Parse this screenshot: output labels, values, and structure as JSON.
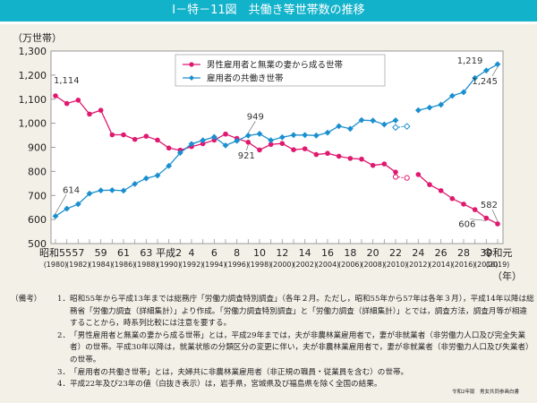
{
  "title": "Ⅰ－特－11図　共働き等世帯数の推移",
  "chart_data": {
    "type": "line",
    "title": "Ⅰ－特－11図　共働き等世帯数の推移",
    "ylabel": "（万世帯）",
    "xlabel": "（年）",
    "ylim": [
      500,
      1300
    ],
    "yticks": [
      500,
      600,
      700,
      800,
      900,
      1000,
      1100,
      1200,
      1300
    ],
    "ytick_labels": [
      "500",
      "600",
      "700",
      "800",
      "900",
      "1,000",
      "1,100",
      "1,200",
      "1,300"
    ],
    "grid": false,
    "legend_position": "top-center",
    "x": [
      1980,
      1981,
      1982,
      1983,
      1984,
      1985,
      1986,
      1987,
      1988,
      1989,
      1990,
      1991,
      1992,
      1993,
      1994,
      1995,
      1996,
      1997,
      1998,
      1999,
      2000,
      2001,
      2002,
      2003,
      2004,
      2005,
      2006,
      2007,
      2008,
      2009,
      2010,
      2011,
      2012,
      2013,
      2014,
      2015,
      2016,
      2017,
      2018,
      2019
    ],
    "xtick_labels": [
      {
        "year": 1980,
        "era": "昭和55",
        "western": "(1980)"
      },
      {
        "year": 1982,
        "era": "57",
        "western": "(1982)"
      },
      {
        "year": 1984,
        "era": "59",
        "western": "(1984)"
      },
      {
        "year": 1986,
        "era": "61",
        "western": "(1986)"
      },
      {
        "year": 1988,
        "era": "63",
        "western": "(1988)"
      },
      {
        "year": 1990,
        "era": "平成2",
        "western": "(1990)"
      },
      {
        "year": 1992,
        "era": "4",
        "western": "(1992)"
      },
      {
        "year": 1994,
        "era": "6",
        "western": "(1994)"
      },
      {
        "year": 1996,
        "era": "8",
        "western": "(1996)"
      },
      {
        "year": 1998,
        "era": "10",
        "western": "(1998)"
      },
      {
        "year": 2000,
        "era": "12",
        "western": "(2000)"
      },
      {
        "year": 2002,
        "era": "14",
        "western": "(2002)"
      },
      {
        "year": 2004,
        "era": "16",
        "western": "(2004)"
      },
      {
        "year": 2006,
        "era": "18",
        "western": "(2006)"
      },
      {
        "year": 2008,
        "era": "20",
        "western": "(2008)"
      },
      {
        "year": 2010,
        "era": "22",
        "western": "(2010)"
      },
      {
        "year": 2012,
        "era": "24",
        "western": "(2012)"
      },
      {
        "year": 2014,
        "era": "26",
        "western": "(2014)"
      },
      {
        "year": 2016,
        "era": "28",
        "western": "(2016)"
      },
      {
        "year": 2018,
        "era": "30",
        "western": "(2018)"
      },
      {
        "year": 2019,
        "era": "令和元",
        "western": "(2019)"
      }
    ],
    "series": [
      {
        "name": "男性雇用者と無業の妻から成る世帯",
        "color": "#e0186f",
        "marker": "circle",
        "values": [
          1114,
          1082,
          1096,
          1038,
          1054,
          952,
          952,
          933,
          946,
          930,
          897,
          888,
          903,
          915,
          930,
          955,
          937,
          921,
          889,
          912,
          916,
          890,
          894,
          870,
          875,
          863,
          854,
          851,
          825,
          831,
          797,
          null,
          787,
          745,
          720,
          687,
          664,
          641,
          606,
          582
        ],
        "excluded_region_values": {
          "2010": 777,
          "2011": 773
        }
      },
      {
        "name": "雇用者の共働き世帯",
        "color": "#1a8fcf",
        "marker": "diamond",
        "values": [
          614,
          645,
          664,
          708,
          721,
          722,
          720,
          748,
          771,
          783,
          823,
          877,
          914,
          929,
          943,
          908,
          927,
          949,
          956,
          929,
          942,
          951,
          951,
          949,
          961,
          988,
          977,
          1013,
          1011,
          995,
          1012,
          null,
          1054,
          1065,
          1077,
          1114,
          1129,
          1188,
          1219,
          1245
        ],
        "excluded_region_values": {
          "2010": 983,
          "2011": 987
        }
      }
    ],
    "annotations": [
      {
        "series": 0,
        "year": 1980,
        "text": "1,114"
      },
      {
        "series": 1,
        "year": 1980,
        "text": "614"
      },
      {
        "series": 1,
        "year": 1997,
        "text": "949"
      },
      {
        "series": 0,
        "year": 1997,
        "text": "921"
      },
      {
        "series": 1,
        "year": 2018,
        "text": "1,219"
      },
      {
        "series": 1,
        "year": 2019,
        "text": "1,245"
      },
      {
        "series": 0,
        "year": 2018,
        "text": "606"
      },
      {
        "series": 0,
        "year": 2019,
        "text": "582"
      }
    ]
  },
  "notes": {
    "header": "（備考）",
    "items": [
      {
        "num": "1．",
        "text": "昭和55年から平成13年までは総務庁「労働力調査特別調査」（各年２月。ただし，昭和55年から57年は各年３月），平成14年以降は総務省「労働力調査（詳細集計）」より作成。「労働力調査特別調査」と「労働力調査（詳細集計）」とでは，調査方法，調査月等が相違することから，時系列比較には注意を要する。"
      },
      {
        "num": "2．",
        "text": "「男性雇用者と無業の妻から成る世帯」とは，平成29年までは，夫が非農林業雇用者で，妻が非就業者（非労働力人口及び完全失業者）の世帯。平成30年以降は，就業状態の分類区分の変更に伴い，夫が非農林業雇用者で，妻が非就業者（非労働力人口及び失業者）の世帯。"
      },
      {
        "num": "3．",
        "text": "「雇用者の共働き世帯」とは，夫婦共に非農林業雇用者（非正規の職員・従業員を含む）の世帯。"
      },
      {
        "num": "4．",
        "text": "平成22年及び23年の値（白抜き表示）は，岩手県，宮城県及び福島県を除く全国の結果。"
      }
    ]
  },
  "source": "令和2年版　男女共同参画白書"
}
